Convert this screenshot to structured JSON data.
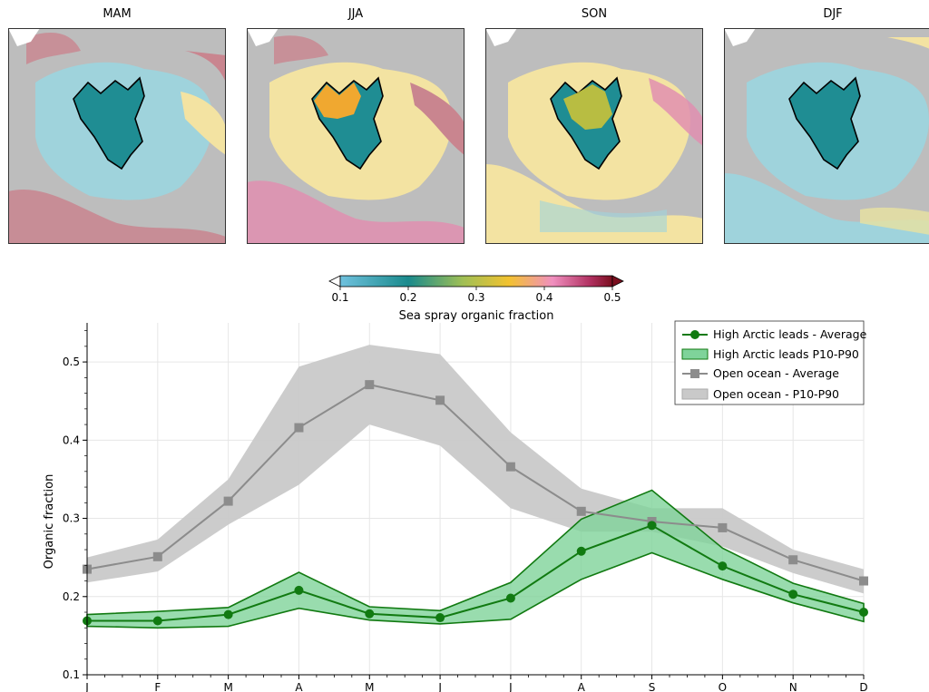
{
  "maps": {
    "panels": [
      {
        "title": "MAM"
      },
      {
        "title": "JJA"
      },
      {
        "title": "SON"
      },
      {
        "title": "DJF"
      }
    ],
    "colors": {
      "land": "#bdbdbd",
      "ocean_low": "#9fd3dc",
      "ocean_teal": "#1f8d93",
      "ocean_mid": "#f3e3a2",
      "ocean_yellow": "#f2c53d",
      "ocean_orange": "#f0a830",
      "ocean_pink": "#e08fb0",
      "ocean_red": "#c9858f",
      "outline": "#000000"
    }
  },
  "colorbar": {
    "label": "Sea spray organic fraction",
    "ticks": [
      "0.1",
      "0.2",
      "0.3",
      "0.4",
      "0.5"
    ],
    "range": [
      0.1,
      0.5
    ],
    "colors": [
      "#6fc1de",
      "#1a8a8c",
      "#9fbf55",
      "#f2c230",
      "#f08fbf",
      "#b03060",
      "#7a0f1f"
    ]
  },
  "chart_data": {
    "type": "line",
    "x": [
      "J",
      "F",
      "M",
      "A",
      "M",
      "J",
      "J",
      "A",
      "S",
      "O",
      "N",
      "D"
    ],
    "ylabel": "Organic fraction",
    "ylim": [
      0.1,
      0.55
    ],
    "yticks": [
      "0.1",
      "0.2",
      "0.3",
      "0.4",
      "0.5"
    ],
    "grid": true,
    "legend_position": "top-right",
    "series": [
      {
        "name": "High Arctic leads - Average",
        "band_name": "High Arctic leads P10-P90",
        "color": "#117a11",
        "fill": "#7fd39a",
        "marker": "circle",
        "values": [
          0.169,
          0.169,
          0.177,
          0.208,
          0.178,
          0.173,
          0.198,
          0.258,
          0.291,
          0.239,
          0.203,
          0.18
        ],
        "p10": [
          0.162,
          0.16,
          0.162,
          0.185,
          0.17,
          0.165,
          0.171,
          0.222,
          0.256,
          0.222,
          0.192,
          0.168
        ],
        "p90": [
          0.177,
          0.181,
          0.186,
          0.231,
          0.187,
          0.182,
          0.218,
          0.299,
          0.336,
          0.262,
          0.217,
          0.191
        ]
      },
      {
        "name": "Open ocean - Average",
        "band_name": "Open ocean - P10-P90",
        "color": "#8c8c8c",
        "fill": "#c9c9c9",
        "marker": "square",
        "values": [
          0.235,
          0.251,
          0.322,
          0.416,
          0.471,
          0.451,
          0.366,
          0.309,
          0.296,
          0.288,
          0.247,
          0.22
        ],
        "p10": [
          0.218,
          0.232,
          0.292,
          0.343,
          0.42,
          0.393,
          0.313,
          0.283,
          0.283,
          0.264,
          0.23,
          0.204
        ],
        "p90": [
          0.25,
          0.273,
          0.35,
          0.494,
          0.522,
          0.51,
          0.41,
          0.338,
          0.313,
          0.313,
          0.26,
          0.235
        ]
      }
    ]
  }
}
